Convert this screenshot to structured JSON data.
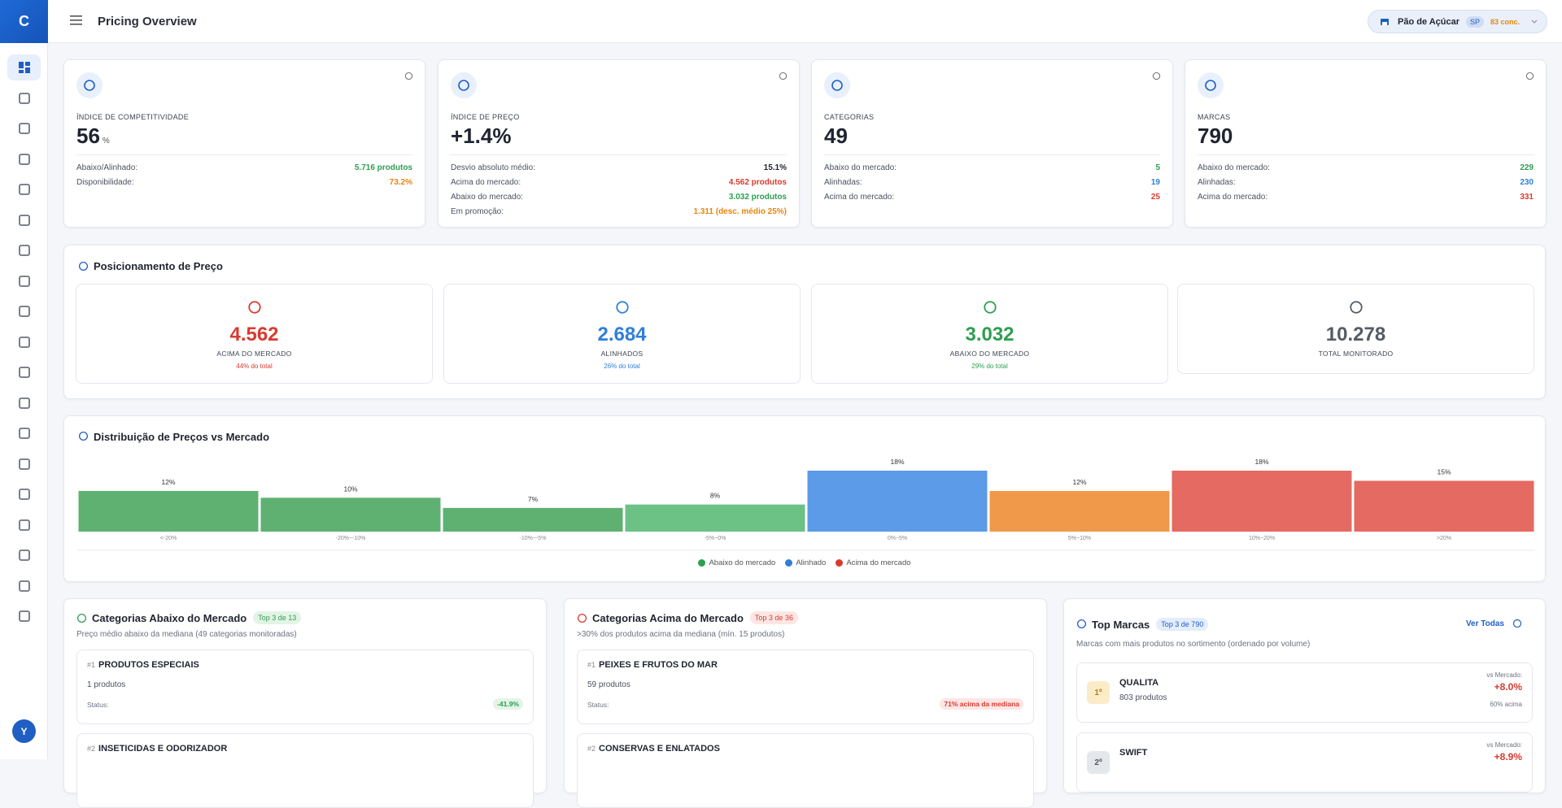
{
  "header": {
    "logo": "C",
    "title": "Pricing Overview",
    "store": "Pão de Açúcar",
    "store_state": "SP",
    "competitors": "83 conc."
  },
  "user_initial": "Y",
  "kpis": [
    {
      "label": "ÍNDICE DE COMPETITIVIDADE",
      "value": "56",
      "unit": "%",
      "rows": [
        {
          "label": "Abaixo/Alinhado:",
          "value": "5.716 produtos",
          "color": "#2e9e4f"
        },
        {
          "label": "Disponibilidade:",
          "value": "73.2%",
          "color": "#e8850c"
        }
      ]
    },
    {
      "label": "ÍNDICE DE PREÇO",
      "value": "+1.4%",
      "rows": [
        {
          "label": "Desvio absoluto médio:",
          "value": "15.1%",
          "color": "#1f2430"
        },
        {
          "label": "Acima do mercado:",
          "value": "4.562 produtos",
          "color": "#d93a2f"
        },
        {
          "label": "Abaixo do mercado:",
          "value": "3.032 produtos",
          "color": "#2e9e4f"
        },
        {
          "label": "Em promoção:",
          "value": "1.311 (desc. médio 25%)",
          "color": "#e8850c"
        }
      ]
    },
    {
      "label": "CATEGORIAS",
      "value": "49",
      "rows": [
        {
          "label": "Abaixo do mercado:",
          "value": "5",
          "color": "#2e9e4f"
        },
        {
          "label": "Alinhadas:",
          "value": "19",
          "color": "#2f7fd9"
        },
        {
          "label": "Acima do mercado:",
          "value": "25",
          "color": "#d93a2f"
        }
      ]
    },
    {
      "label": "MARCAS",
      "value": "790",
      "rows": [
        {
          "label": "Abaixo do mercado:",
          "value": "229",
          "color": "#2e9e4f"
        },
        {
          "label": "Alinhadas:",
          "value": "230",
          "color": "#2f7fd9"
        },
        {
          "label": "Acima do mercado:",
          "value": "331",
          "color": "#d93a2f"
        }
      ]
    }
  ],
  "positioning": {
    "title": "Posicionamento de Preço",
    "boxes": [
      {
        "value": "4.562",
        "label": "ACIMA DO MERCADO",
        "note": "44% do total",
        "color": "#d93a2f"
      },
      {
        "value": "2.684",
        "label": "ALINHADOS",
        "note": "26% do total",
        "color": "#2f7fd9"
      },
      {
        "value": "3.032",
        "label": "ABAIXO DO MERCADO",
        "note": "29% do total",
        "color": "#2e9e4f"
      },
      {
        "value": "10.278",
        "label": "TOTAL MONITORADO",
        "color": "#555b66"
      }
    ]
  },
  "chart_data": {
    "type": "bar",
    "title": "Distribuição de Preços vs Mercado",
    "categories": [
      "<-20%",
      "-20%~-10%",
      "-10%~-5%",
      "-5%~0%",
      "0%~5%",
      "5%~10%",
      "10%~20%",
      ">20%"
    ],
    "values": [
      12,
      10,
      7,
      8,
      18,
      12,
      18,
      15
    ],
    "value_labels": [
      "12%",
      "10%",
      "7%",
      "8%",
      "18%",
      "12%",
      "18%",
      "15%"
    ],
    "colors": [
      "#5fb172",
      "#5fb172",
      "#5fb172",
      "#6cc185",
      "#5b9be8",
      "#f0994a",
      "#e46a62",
      "#e46a62"
    ],
    "ylim": [
      0,
      18
    ],
    "legend": [
      {
        "name": "Abaixo do mercado",
        "color": "#2e9e4f"
      },
      {
        "name": "Alinhado",
        "color": "#2f7fd9"
      },
      {
        "name": "Acima do mercado",
        "color": "#d93a2f"
      }
    ]
  },
  "lists": [
    {
      "title": "Categorias Abaixo do Mercado",
      "badge": "Top 3 de 13",
      "badge_tone": "green",
      "subtitle": "Preço médio abaixo da mediana (49 categorias monitoradas)",
      "items": [
        {
          "rank": "#1",
          "name": "PRODUTOS ESPECIAIS",
          "count": "1 produtos",
          "status_label": "Status:",
          "status": "-41.9%"
        },
        {
          "rank": "#2",
          "name": "INSETICIDAS E ODORIZADOR"
        }
      ]
    },
    {
      "title": "Categorias Acima do Mercado",
      "badge": "Top 3 de 36",
      "badge_tone": "red",
      "subtitle": ">30% dos produtos acima da mediana (mín. 15 produtos)",
      "items": [
        {
          "rank": "#1",
          "name": "PEIXES E FRUTOS DO MAR",
          "count": "59 produtos",
          "status_label": "Status:",
          "status": "71% acima da mediana"
        },
        {
          "rank": "#2",
          "name": "CONSERVAS E ENLATADOS"
        }
      ]
    }
  ],
  "brands": {
    "title": "Top Marcas",
    "badge": "Top 3 de 790",
    "link": "Ver Todas",
    "subtitle": "Marcas com mais produtos no sortimento (ordenado por volume)",
    "items": [
      {
        "rank": "1º",
        "name": "QUALITA",
        "count": "803 produtos",
        "vs_label": "vs Mercado:",
        "vs": "+8.0%",
        "note": "60% acima"
      },
      {
        "rank": "2º",
        "name": "SWIFT",
        "vs_label": "vs Mercado:",
        "vs": "+8.9%"
      }
    ]
  }
}
